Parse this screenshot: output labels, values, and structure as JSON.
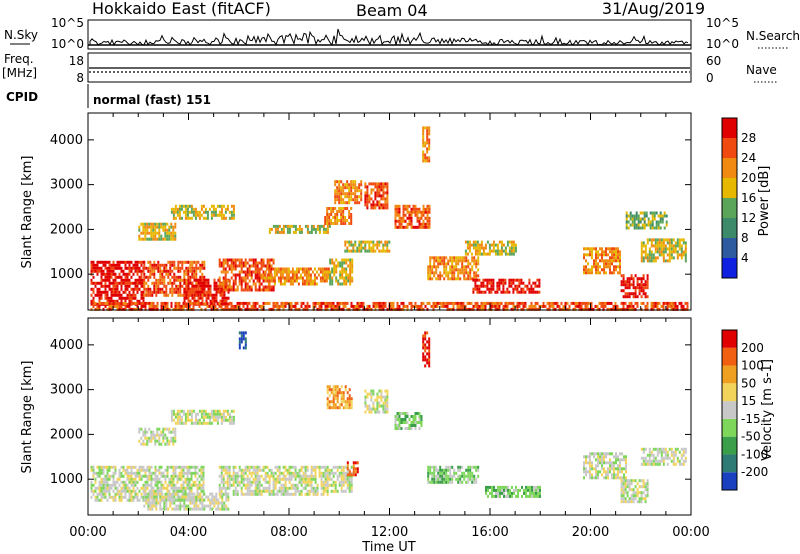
{
  "header": {
    "radar": "Hokkaido East (fitACF)",
    "beam": "Beam 04",
    "date": "31/Aug/2019"
  },
  "sky_panel": {
    "left_label": "N.Sky",
    "left_ticks": [
      "10^5",
      "10^0"
    ],
    "right_label": "N.Search",
    "right_ticks": [
      "10^5",
      "10^0"
    ]
  },
  "freq_panel": {
    "left_label_1": "Freq.",
    "left_label_2": "[MHz]",
    "left_ticks": [
      "18",
      "8"
    ],
    "right_label": "Nave",
    "right_ticks": [
      "60",
      "0"
    ]
  },
  "cpid_panel": {
    "label": "CPID",
    "mode": "normal (fast) 151"
  },
  "chart_data": [
    {
      "type": "heatmap",
      "title": "",
      "ylabel": "Slant Range [km]",
      "xlabel": "",
      "x_tick_labels": [
        "00:00",
        "04:00",
        "08:00",
        "12:00",
        "16:00",
        "20:00",
        "00:00"
      ],
      "y_ticks": [
        1000,
        2000,
        3000,
        4000
      ],
      "ylim": [
        200,
        4600
      ],
      "xlim_hours": [
        0,
        24
      ],
      "colorbar": {
        "label": "Power [dB]",
        "ticks": [
          "4",
          "8",
          "12",
          "16",
          "20",
          "24",
          "28"
        ],
        "colors": [
          "#1020e0",
          "#2e5ba0",
          "#3d8a6a",
          "#5aa55a",
          "#e6b800",
          "#f08a10",
          "#f04a10",
          "#e00000"
        ]
      },
      "regions": [
        {
          "t0": 0.1,
          "t1": 2.2,
          "r0": 350,
          "r1": 1300,
          "level": 7
        },
        {
          "t0": 2.2,
          "t1": 4.6,
          "r0": 550,
          "r1": 1300,
          "level": 6
        },
        {
          "t0": 3.8,
          "t1": 5.6,
          "r0": 300,
          "r1": 900,
          "level": 7
        },
        {
          "t0": 5.2,
          "t1": 7.4,
          "r0": 650,
          "r1": 1350,
          "level": 6
        },
        {
          "t0": 7.0,
          "t1": 9.6,
          "r0": 750,
          "r1": 1150,
          "level": 5
        },
        {
          "t0": 9.6,
          "t1": 10.5,
          "r0": 750,
          "r1": 1350,
          "level": 4
        },
        {
          "t0": 2.0,
          "t1": 3.5,
          "r0": 1750,
          "r1": 2150,
          "level": 4
        },
        {
          "t0": 3.3,
          "t1": 5.8,
          "r0": 2250,
          "r1": 2550,
          "level": 4
        },
        {
          "t0": 7.2,
          "t1": 9.6,
          "r0": 1900,
          "r1": 2100,
          "level": 4
        },
        {
          "t0": 9.4,
          "t1": 10.5,
          "r0": 2100,
          "r1": 2500,
          "level": 5
        },
        {
          "t0": 9.8,
          "t1": 10.9,
          "r0": 2600,
          "r1": 3100,
          "level": 5
        },
        {
          "t0": 11.0,
          "t1": 11.9,
          "r0": 2500,
          "r1": 3050,
          "level": 6
        },
        {
          "t0": 12.2,
          "t1": 13.6,
          "r0": 2050,
          "r1": 2550,
          "level": 6
        },
        {
          "t0": 10.2,
          "t1": 12.0,
          "r0": 1500,
          "r1": 1750,
          "level": 4
        },
        {
          "t0": 13.5,
          "t1": 15.5,
          "r0": 900,
          "r1": 1400,
          "level": 5
        },
        {
          "t0": 15.3,
          "t1": 18.0,
          "r0": 600,
          "r1": 900,
          "level": 7
        },
        {
          "t0": 15.0,
          "t1": 17.0,
          "r0": 1450,
          "r1": 1750,
          "level": 4
        },
        {
          "t0": 19.7,
          "t1": 21.2,
          "r0": 1050,
          "r1": 1600,
          "level": 5
        },
        {
          "t0": 21.2,
          "t1": 22.3,
          "r0": 500,
          "r1": 1000,
          "level": 7
        },
        {
          "t0": 22.0,
          "t1": 23.8,
          "r0": 1300,
          "r1": 1800,
          "level": 4
        },
        {
          "t0": 21.4,
          "t1": 23.0,
          "r0": 2050,
          "r1": 2400,
          "level": 3
        },
        {
          "t0": 13.3,
          "t1": 13.6,
          "r0": 3500,
          "r1": 4300,
          "level": 5
        },
        {
          "t0": 0.1,
          "t1": 23.9,
          "r0": 200,
          "r1": 380,
          "level": 6
        }
      ]
    },
    {
      "type": "heatmap",
      "title": "",
      "ylabel": "Slant Range [km]",
      "xlabel": "Time UT",
      "x_tick_labels": [
        "00:00",
        "04:00",
        "08:00",
        "12:00",
        "16:00",
        "20:00",
        "00:00"
      ],
      "y_ticks": [
        1000,
        2000,
        3000,
        4000
      ],
      "ylim": [
        200,
        4600
      ],
      "xlim_hours": [
        0,
        24
      ],
      "colorbar": {
        "label": "Velocity [m s-1]",
        "ticks": [
          "200",
          "100",
          "50",
          "15",
          "-15",
          "-50",
          "-100",
          "-200"
        ],
        "colors": [
          "#1a3fbf",
          "#2e7a74",
          "#3a9e4a",
          "#7ed65a",
          "#c8c8c8",
          "#f2d45a",
          "#f0a020",
          "#f06010",
          "#e00000"
        ]
      },
      "regions": [
        {
          "t0": 0.1,
          "t1": 4.6,
          "r0": 500,
          "r1": 1300,
          "level": 4
        },
        {
          "t0": 2.2,
          "t1": 5.6,
          "r0": 300,
          "r1": 700,
          "level": 4
        },
        {
          "t0": 5.2,
          "t1": 9.5,
          "r0": 650,
          "r1": 1300,
          "level": 4
        },
        {
          "t0": 9.5,
          "t1": 10.5,
          "r0": 750,
          "r1": 1300,
          "level": 4
        },
        {
          "t0": 2.0,
          "t1": 3.5,
          "r0": 1750,
          "r1": 2150,
          "level": 4
        },
        {
          "t0": 3.3,
          "t1": 5.8,
          "r0": 2250,
          "r1": 2550,
          "level": 4
        },
        {
          "t0": 9.5,
          "t1": 10.5,
          "r0": 2600,
          "r1": 3100,
          "level": 6
        },
        {
          "t0": 11.0,
          "t1": 11.9,
          "r0": 2500,
          "r1": 3000,
          "level": 4
        },
        {
          "t0": 12.2,
          "t1": 13.3,
          "r0": 2100,
          "r1": 2500,
          "level": 3
        },
        {
          "t0": 13.5,
          "t1": 15.5,
          "r0": 900,
          "r1": 1300,
          "level": 3
        },
        {
          "t0": 15.8,
          "t1": 18.0,
          "r0": 600,
          "r1": 850,
          "level": 3
        },
        {
          "t0": 10.3,
          "t1": 10.7,
          "r0": 1100,
          "r1": 1400,
          "level": 7
        },
        {
          "t0": 19.7,
          "t1": 21.4,
          "r0": 1050,
          "r1": 1600,
          "level": 4
        },
        {
          "t0": 21.2,
          "t1": 22.3,
          "r0": 500,
          "r1": 1000,
          "level": 4
        },
        {
          "t0": 22.0,
          "t1": 23.8,
          "r0": 1300,
          "r1": 1700,
          "level": 4
        },
        {
          "t0": 6.0,
          "t1": 6.3,
          "r0": 3900,
          "r1": 4300,
          "level": 0
        },
        {
          "t0": 13.3,
          "t1": 13.6,
          "r0": 3500,
          "r1": 4300,
          "level": 8
        }
      ]
    }
  ]
}
